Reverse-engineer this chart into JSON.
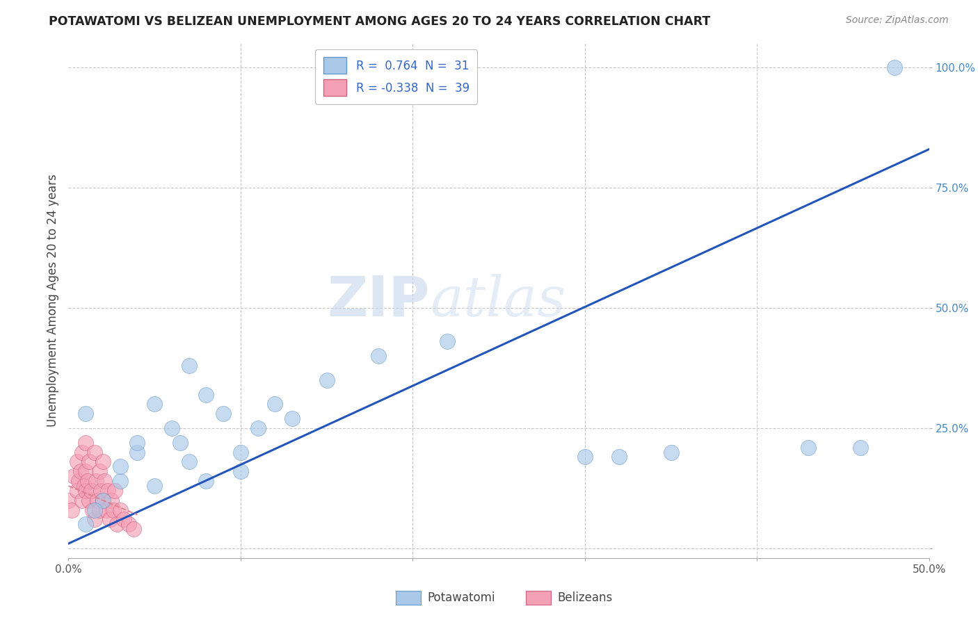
{
  "title": "POTAWATOMI VS BELIZEAN UNEMPLOYMENT AMONG AGES 20 TO 24 YEARS CORRELATION CHART",
  "source": "Source: ZipAtlas.com",
  "ylabel": "Unemployment Among Ages 20 to 24 years",
  "xlim": [
    0.0,
    0.5
  ],
  "ylim": [
    -0.02,
    1.05
  ],
  "xticks": [
    0.0,
    0.1,
    0.2,
    0.3,
    0.4,
    0.5
  ],
  "xtick_labels": [
    "0.0%",
    "",
    "",
    "",
    "",
    "50.0%"
  ],
  "yticks": [
    0.0,
    0.25,
    0.5,
    0.75,
    1.0
  ],
  "ytick_labels": [
    "",
    "25.0%",
    "50.0%",
    "75.0%",
    "100.0%"
  ],
  "grid_color": "#c8c8c8",
  "background_color": "#ffffff",
  "watermark_zip": "ZIP",
  "watermark_atlas": "atlas",
  "legend_r1": "R =  0.764  N =  31",
  "legend_r2": "R = -0.338  N =  39",
  "potawatomi_color": "#aac8e8",
  "belizean_color": "#f4a0b5",
  "potawatomi_edge_color": "#6699cc",
  "belizean_edge_color": "#d06080",
  "potawatomi_line_color": "#2255bb",
  "belizean_line_color": "#e08090",
  "potawatomi_scatter_x": [
    0.01,
    0.02,
    0.01,
    0.03,
    0.015,
    0.04,
    0.05,
    0.03,
    0.06,
    0.04,
    0.07,
    0.05,
    0.08,
    0.065,
    0.09,
    0.1,
    0.07,
    0.12,
    0.1,
    0.08,
    0.13,
    0.11,
    0.15,
    0.18,
    0.22,
    0.3,
    0.32,
    0.35,
    0.43,
    0.46,
    0.48
  ],
  "potawatomi_scatter_y": [
    0.05,
    0.1,
    0.28,
    0.14,
    0.08,
    0.2,
    0.3,
    0.17,
    0.25,
    0.22,
    0.18,
    0.13,
    0.32,
    0.22,
    0.28,
    0.2,
    0.38,
    0.3,
    0.16,
    0.14,
    0.27,
    0.25,
    0.35,
    0.4,
    0.43,
    0.19,
    0.19,
    0.2,
    0.21,
    0.21,
    1.0
  ],
  "belizean_scatter_x": [
    0.0,
    0.002,
    0.003,
    0.005,
    0.005,
    0.006,
    0.007,
    0.008,
    0.008,
    0.009,
    0.01,
    0.01,
    0.01,
    0.011,
    0.012,
    0.012,
    0.013,
    0.014,
    0.015,
    0.015,
    0.016,
    0.017,
    0.018,
    0.018,
    0.019,
    0.02,
    0.02,
    0.021,
    0.022,
    0.023,
    0.024,
    0.025,
    0.026,
    0.027,
    0.028,
    0.03,
    0.032,
    0.035,
    0.038
  ],
  "belizean_scatter_y": [
    0.1,
    0.08,
    0.15,
    0.12,
    0.18,
    0.14,
    0.16,
    0.1,
    0.2,
    0.13,
    0.12,
    0.16,
    0.22,
    0.14,
    0.1,
    0.18,
    0.12,
    0.08,
    0.06,
    0.2,
    0.14,
    0.1,
    0.08,
    0.16,
    0.12,
    0.1,
    0.18,
    0.14,
    0.08,
    0.12,
    0.06,
    0.1,
    0.08,
    0.12,
    0.05,
    0.08,
    0.06,
    0.05,
    0.04
  ],
  "potawatomi_line_x": [
    0.0,
    0.5
  ],
  "potawatomi_line_y": [
    0.01,
    0.83
  ],
  "belizean_line_x": [
    0.0,
    0.04
  ],
  "belizean_line_y": [
    0.13,
    0.07
  ]
}
